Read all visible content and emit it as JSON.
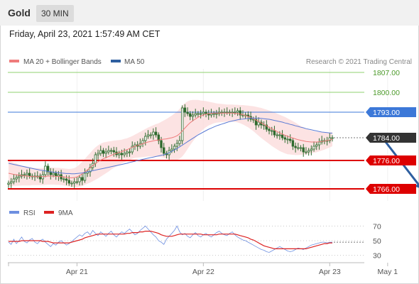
{
  "header": {
    "title": "Gold",
    "timeframe": "30 MIN",
    "datetime": "Friday, April 23, 2021 1:57:49 AM CET"
  },
  "legend": {
    "ma20": "MA 20 + Bollinger Bands",
    "ma50": "MA 50",
    "copyright": "Research © 2021 Trading Central",
    "rsi": "RSI",
    "rsi_ma": "9MA"
  },
  "colors": {
    "candle": "#2f6b2f",
    "ma20": "#ef7b7b",
    "band_fill": "#fbdada",
    "ma50": "#5b7bd5",
    "resistance": "#8fd06f",
    "pivot": "#3c78d8",
    "support": "#dd0000",
    "current": "#333333",
    "arrow": "#2e5fa0",
    "rsi": "#6e8fe0",
    "rsi_ma": "#dd2222"
  },
  "chart_data": [
    {
      "type": "candlestick",
      "ylim": [
        1760,
        1810
      ],
      "x_ticks": [
        {
          "label": "Apr 21",
          "x": 26
        },
        {
          "label": "Apr 22",
          "x": 74
        },
        {
          "label": "Apr 23",
          "x": 122
        },
        {
          "label": "May 1",
          "x": 144
        }
      ],
      "levels": [
        {
          "value": 1807.0,
          "label": "1807.00",
          "kind": "resistance"
        },
        {
          "value": 1800.0,
          "label": "1800.00",
          "kind": "resistance"
        },
        {
          "value": 1793.0,
          "label": "1793.00",
          "kind": "pivot"
        },
        {
          "value": 1784.0,
          "label": "1784.00",
          "kind": "current"
        },
        {
          "value": 1776.0,
          "label": "1776.00",
          "kind": "support"
        },
        {
          "value": 1766.0,
          "label": "1766.00",
          "kind": "support"
        }
      ],
      "forecast_arrow": {
        "from": {
          "x": 142,
          "y": 1784
        },
        "to": {
          "x": 157,
          "y": 1766
        }
      },
      "close": [
        1768.0,
        1768.5,
        1769.5,
        1770.0,
        1770.5,
        1771.0,
        1771.0,
        1771.5,
        1770.5,
        1770.5,
        1770.5,
        1770.5,
        1769.5,
        1771.0,
        1774.0,
        1772.0,
        1771.0,
        1771.5,
        1770.5,
        1771.0,
        1769.5,
        1769.5,
        1769.0,
        1768.0,
        1768.0,
        1768.5,
        1768.5,
        1770.0,
        1769.0,
        1771.5,
        1772.0,
        1773.5,
        1775.0,
        1778.0,
        1778.5,
        1779.5,
        1778.5,
        1779.0,
        1779.5,
        1779.5,
        1779.0,
        1778.0,
        1778.5,
        1778.0,
        1778.5,
        1779.0,
        1779.0,
        1781.0,
        1781.5,
        1781.0,
        1782.0,
        1783.0,
        1784.5,
        1785.0,
        1785.0,
        1786.0,
        1785.0,
        1783.0,
        1780.5,
        1778.5,
        1778.0,
        1779.5,
        1780.0,
        1781.0,
        1782.0,
        1783.0,
        1794.5,
        1793.0,
        1792.5,
        1791.5,
        1792.0,
        1792.5,
        1792.5,
        1792.5,
        1793.0,
        1792.5,
        1792.0,
        1792.5,
        1792.5,
        1792.5,
        1793.0,
        1793.0,
        1793.0,
        1793.0,
        1793.0,
        1793.0,
        1793.0,
        1793.5,
        1792.0,
        1792.0,
        1792.0,
        1791.5,
        1790.5,
        1790.5,
        1788.5,
        1789.5,
        1788.5,
        1788.5,
        1787.0,
        1786.5,
        1786.5,
        1785.0,
        1785.0,
        1785.0,
        1784.0,
        1783.5,
        1783.5,
        1783.0,
        1781.0,
        1780.5,
        1780.5,
        1780.5,
        1779.0,
        1779.0,
        1779.5,
        1780.0,
        1781.0,
        1781.5,
        1782.5,
        1783.0,
        1783.0,
        1783.0,
        1784.0,
        1784.0
      ],
      "ma20": [
        1771.5,
        1771.3,
        1771.1,
        1771.0,
        1770.8,
        1770.7,
        1770.6,
        1770.5,
        1770.4,
        1770.4,
        1770.3,
        1770.3,
        1770.3,
        1770.3,
        1770.4,
        1770.5,
        1770.5,
        1770.5,
        1770.4,
        1770.4,
        1770.3,
        1770.2,
        1770.1,
        1769.9,
        1769.9,
        1770.0,
        1770.2,
        1770.7,
        1771.3,
        1772.0,
        1772.7,
        1773.4,
        1774.2,
        1774.9,
        1775.5,
        1776.1,
        1776.6,
        1777.0,
        1777.4,
        1777.8,
        1778.2,
        1778.5,
        1778.8,
        1779.1,
        1779.5,
        1779.8,
        1780.2,
        1780.6,
        1781.0,
        1781.3,
        1781.6,
        1781.9,
        1782.2,
        1782.5,
        1782.7,
        1782.9,
        1783.1,
        1783.2,
        1783.4,
        1783.5,
        1783.6,
        1783.8,
        1784.0,
        1784.3,
        1784.7,
        1785.4,
        1786.4,
        1787.4,
        1788.4,
        1789.3,
        1790.0,
        1790.6,
        1791.2,
        1791.6,
        1792.0,
        1792.3,
        1792.5,
        1792.6,
        1792.7,
        1792.7,
        1792.7,
        1792.7,
        1792.7,
        1792.7,
        1792.7,
        1792.7,
        1792.6,
        1792.5,
        1792.3,
        1792.1,
        1791.8,
        1791.5,
        1791.1,
        1790.7,
        1790.2,
        1789.7,
        1789.2,
        1788.7,
        1788.2,
        1787.7,
        1787.2,
        1786.7,
        1786.2,
        1785.7,
        1785.3,
        1784.9,
        1784.5,
        1784.2,
        1783.9,
        1783.6,
        1783.3,
        1783.1,
        1782.9,
        1782.7,
        1782.6,
        1782.5,
        1782.5,
        1782.5,
        1782.6,
        1782.7,
        1782.8,
        1783.0,
        1783.2,
        1783.5
      ],
      "ma50": [
        1775.0,
        1774.8,
        1774.6,
        1774.4,
        1774.2,
        1774.0,
        1773.8,
        1773.6,
        1773.4,
        1773.2,
        1773.0,
        1772.8,
        1772.6,
        1772.5,
        1772.3,
        1772.2,
        1772.0,
        1771.9,
        1771.8,
        1771.7,
        1771.6,
        1771.5,
        1771.4,
        1771.4,
        1771.3,
        1771.3,
        1771.4,
        1771.5,
        1771.6,
        1771.8,
        1772.0,
        1772.2,
        1772.4,
        1772.6,
        1772.8,
        1773.0,
        1773.2,
        1773.4,
        1773.6,
        1773.8,
        1774.0,
        1774.2,
        1774.4,
        1774.6,
        1774.8,
        1775.0,
        1775.3,
        1775.5,
        1775.7,
        1776.0,
        1776.2,
        1776.4,
        1776.6,
        1776.8,
        1777.0,
        1777.2,
        1777.4,
        1777.6,
        1777.8,
        1778.0,
        1778.3,
        1778.7,
        1779.2,
        1779.7,
        1780.2,
        1780.8,
        1781.4,
        1782.0,
        1782.6,
        1783.2,
        1783.8,
        1784.4,
        1785.0,
        1785.5,
        1786.0,
        1786.5,
        1787.0,
        1787.4,
        1787.8,
        1788.2,
        1788.5,
        1788.8,
        1789.1,
        1789.4,
        1789.7,
        1789.9,
        1790.1,
        1790.3,
        1790.5,
        1790.6,
        1790.7,
        1790.8,
        1790.9,
        1790.9,
        1790.9,
        1790.9,
        1790.8,
        1790.7,
        1790.6,
        1790.5,
        1790.3,
        1790.1,
        1789.9,
        1789.7,
        1789.5,
        1789.2,
        1789.0,
        1788.7,
        1788.5,
        1788.2,
        1788.0,
        1787.7,
        1787.5,
        1787.2,
        1787.0,
        1786.8,
        1786.6,
        1786.4,
        1786.2,
        1786.0,
        1785.9,
        1785.8,
        1785.7,
        1785.6
      ],
      "band_halfwidth": [
        4.5,
        4.3,
        4.1,
        3.9,
        3.7,
        3.5,
        3.4,
        3.3,
        3.2,
        3.1,
        3.0,
        3.0,
        3.0,
        3.0,
        3.0,
        3.0,
        3.0,
        3.0,
        3.0,
        3.0,
        3.0,
        3.0,
        3.0,
        3.1,
        3.2,
        3.3,
        3.6,
        3.9,
        4.3,
        4.6,
        4.9,
        5.2,
        5.5,
        5.7,
        5.8,
        5.8,
        5.7,
        5.5,
        5.3,
        5.0,
        4.8,
        4.6,
        4.4,
        4.2,
        4.1,
        4.0,
        4.0,
        4.0,
        4.1,
        4.3,
        4.5,
        4.7,
        4.9,
        5.1,
        5.3,
        5.5,
        5.7,
        5.9,
        6.2,
        6.6,
        7.0,
        7.4,
        7.8,
        8.2,
        8.5,
        8.8,
        9.0,
        8.8,
        8.4,
        7.9,
        7.3,
        6.7,
        6.1,
        5.5,
        5.0,
        4.6,
        4.2,
        3.9,
        3.6,
        3.4,
        3.3,
        3.2,
        3.1,
        3.0,
        3.0,
        3.0,
        3.0,
        3.1,
        3.2,
        3.4,
        3.6,
        3.8,
        4.1,
        4.4,
        4.7,
        5.0,
        5.3,
        5.5,
        5.7,
        5.9,
        6.1,
        6.2,
        6.3,
        6.4,
        6.4,
        6.4,
        6.3,
        6.1,
        5.9,
        5.7,
        5.4,
        5.1,
        4.8,
        4.5,
        4.2,
        4.0,
        3.8,
        3.6,
        3.4,
        3.2,
        3.0,
        2.8,
        2.6,
        2.5
      ]
    },
    {
      "type": "line",
      "y_ticks": [
        70,
        50,
        30
      ],
      "ylim": [
        20,
        80
      ],
      "series": [
        {
          "name": "RSI",
          "values": [
            48,
            45,
            52,
            46,
            50,
            55,
            49,
            47,
            51,
            53,
            48,
            46,
            50,
            52,
            48,
            45,
            42,
            46,
            44,
            48,
            50,
            47,
            44,
            46,
            49,
            52,
            55,
            58,
            56,
            60,
            62,
            58,
            64,
            60,
            57,
            62,
            59,
            56,
            60,
            63,
            58,
            55,
            59,
            62,
            60,
            63,
            66,
            62,
            58,
            60,
            64,
            67,
            70,
            66,
            62,
            58,
            55,
            50,
            48,
            45,
            52,
            56,
            60,
            64,
            70,
            62,
            58,
            60,
            56,
            54,
            58,
            61,
            57,
            55,
            58,
            60,
            57,
            55,
            58,
            61,
            63,
            60,
            58,
            57,
            60,
            62,
            58,
            55,
            53,
            51,
            50,
            48,
            46,
            44,
            42,
            40,
            38,
            37,
            35,
            34,
            36,
            38,
            40,
            42,
            40,
            38,
            36,
            35,
            36,
            38,
            40,
            39,
            38,
            40,
            42,
            44,
            45,
            46,
            47,
            48,
            48,
            47,
            48,
            48
          ]
        },
        {
          "name": "9MA",
          "values": [
            49,
            49,
            49,
            49,
            49,
            50,
            50,
            50,
            50,
            50,
            50,
            50,
            50,
            49,
            49,
            49,
            48,
            47,
            47,
            47,
            47,
            47,
            47,
            47,
            48,
            49,
            50,
            51,
            52,
            54,
            55,
            56,
            57,
            58,
            59,
            59,
            59,
            59,
            59,
            59,
            59,
            59,
            59,
            59,
            59,
            60,
            60,
            61,
            61,
            61,
            62,
            62,
            63,
            63,
            63,
            62,
            61,
            60,
            58,
            57,
            56,
            56,
            56,
            57,
            58,
            59,
            59,
            59,
            59,
            59,
            59,
            59,
            59,
            59,
            58,
            58,
            58,
            58,
            58,
            58,
            59,
            59,
            59,
            59,
            59,
            59,
            59,
            58,
            57,
            56,
            55,
            54,
            52,
            51,
            49,
            47,
            45,
            43,
            42,
            41,
            40,
            39,
            39,
            39,
            39,
            39,
            39,
            39,
            39,
            39,
            39,
            39,
            39,
            39,
            40,
            41,
            42,
            43,
            44,
            45,
            46,
            46,
            47,
            47
          ]
        }
      ]
    }
  ]
}
